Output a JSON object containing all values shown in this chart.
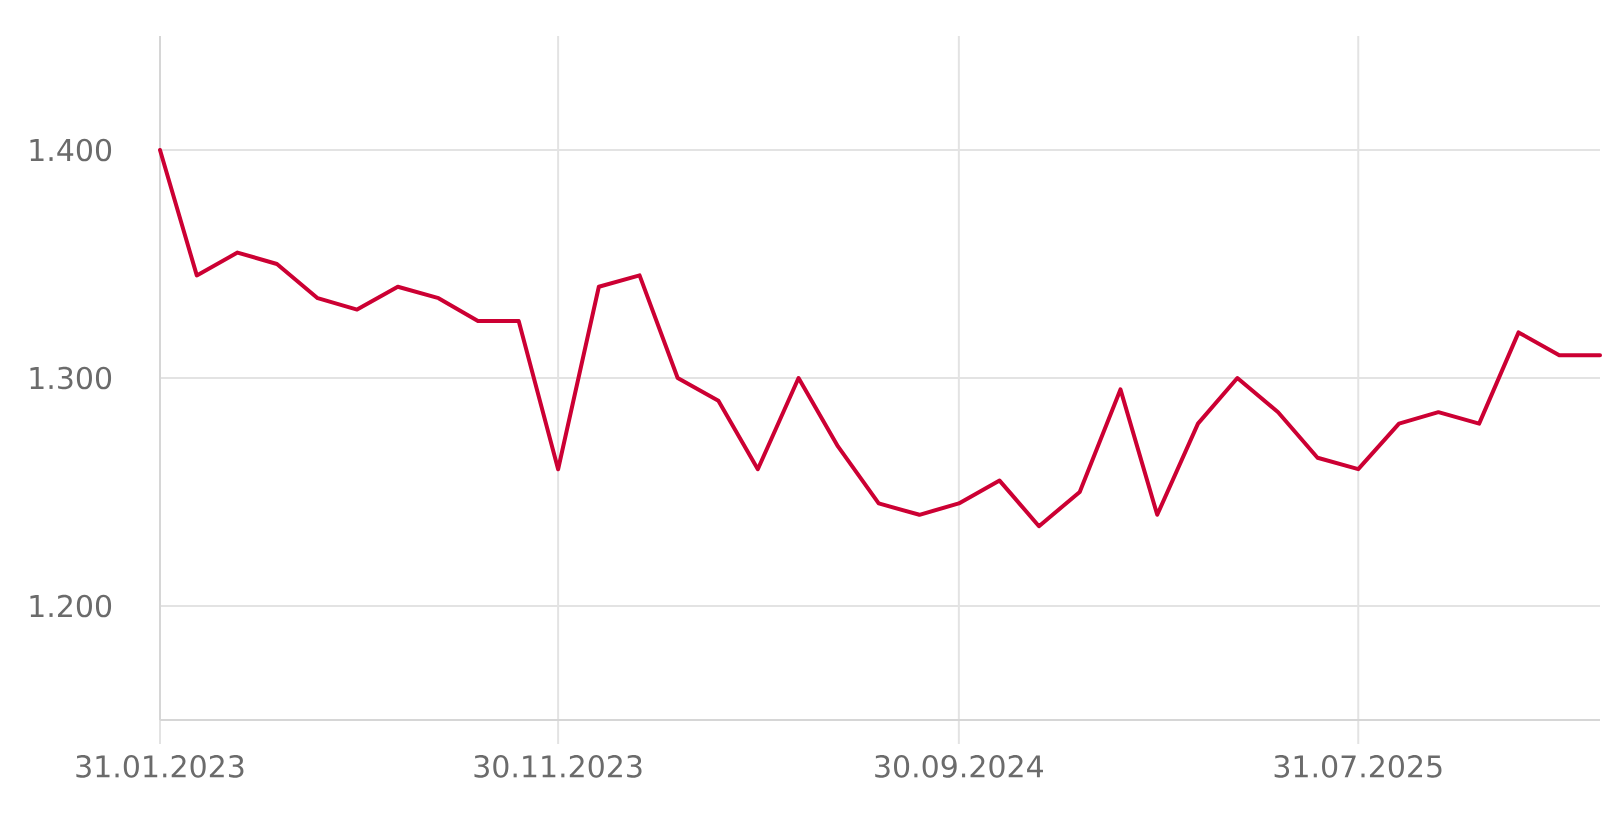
{
  "chart_data": {
    "type": "line",
    "x": [
      "2023-01-31",
      "2023-02-28",
      "2023-03-31",
      "2023-04-30",
      "2023-05-31",
      "2023-06-30",
      "2023-07-31",
      "2023-08-31",
      "2023-09-30",
      "2023-10-31",
      "2023-11-30",
      "2023-12-31",
      "2024-01-31",
      "2024-02-29",
      "2024-03-31",
      "2024-04-30",
      "2024-05-31",
      "2024-06-30",
      "2024-07-31",
      "2024-08-31",
      "2024-09-30",
      "2024-10-31",
      "2024-11-30",
      "2024-12-31",
      "2025-01-31",
      "2025-02-28",
      "2025-03-31",
      "2025-04-30",
      "2025-05-31",
      "2025-06-30",
      "2025-07-31",
      "2025-08-31",
      "2025-09-30",
      "2025-10-31",
      "2025-11-30",
      "2025-12-31",
      "2026-01-31"
    ],
    "series": [
      {
        "color": "#cc0033",
        "values": [
          1400,
          1345,
          1355,
          1350,
          1335,
          1330,
          1340,
          1335,
          1325,
          1325,
          1260,
          1340,
          1345,
          1300,
          1290,
          1260,
          1300,
          1270,
          1245,
          1240,
          1245,
          1255,
          1235,
          1250,
          1295,
          1240,
          1280,
          1300,
          1285,
          1265,
          1260,
          1280,
          1285,
          1280,
          1320,
          1310,
          1310
        ]
      }
    ],
    "xlim": [
      "2023-01-31",
      "2026-01-31"
    ],
    "ylim": [
      1150,
      1450
    ],
    "xticks": [
      {
        "value": "2023-01-31",
        "label": "31.01.2023"
      },
      {
        "value": "2023-11-30",
        "label": "30.11.2023"
      },
      {
        "value": "2024-09-30",
        "label": "30.09.2024"
      },
      {
        "value": "2025-07-31",
        "label": "31.07.2025"
      }
    ],
    "yticks": [
      {
        "value": 1200,
        "label": "1.200"
      },
      {
        "value": 1300,
        "label": "1.300"
      },
      {
        "value": 1400,
        "label": "1.400"
      }
    ],
    "grid": true
  }
}
